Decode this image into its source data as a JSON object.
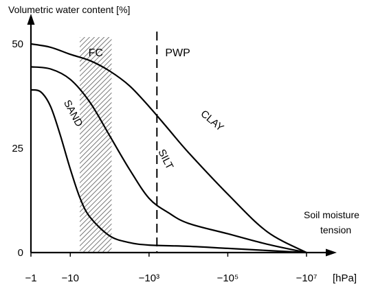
{
  "chart_data": {
    "type": "line",
    "title": "",
    "ylabel": "Volumetric water content [%]",
    "xlabel": "Soil moisture tension",
    "xunit": "[hPa]",
    "ylim": [
      0,
      50
    ],
    "x_ticks": [
      "−1",
      "−10",
      "−10³",
      "−10⁵",
      "−10⁷"
    ],
    "y_ticks": [
      "0",
      "25",
      "50"
    ],
    "series": [
      {
        "name": "SAND",
        "points": [
          [
            0,
            39
          ],
          [
            0.25,
            38.5
          ],
          [
            0.5,
            35
          ],
          [
            0.75,
            28
          ],
          [
            1.0,
            20
          ],
          [
            1.25,
            13
          ],
          [
            1.5,
            8.5
          ],
          [
            2.0,
            4
          ],
          [
            2.5,
            2.4
          ],
          [
            3.0,
            1.8
          ],
          [
            4.0,
            1.5
          ],
          [
            5.0,
            1.0
          ],
          [
            6.0,
            0.5
          ],
          [
            7.0,
            0
          ]
        ]
      },
      {
        "name": "SILT",
        "points": [
          [
            0,
            44.5
          ],
          [
            0.5,
            44
          ],
          [
            1.0,
            41.5
          ],
          [
            1.5,
            36
          ],
          [
            2.0,
            28
          ],
          [
            2.5,
            20
          ],
          [
            3.0,
            13
          ],
          [
            3.5,
            9.5
          ],
          [
            4.0,
            7
          ],
          [
            5.0,
            4.5
          ],
          [
            6.0,
            2
          ],
          [
            7.0,
            0
          ]
        ]
      },
      {
        "name": "CLAY",
        "points": [
          [
            0,
            50
          ],
          [
            0.5,
            49.2
          ],
          [
            1.0,
            47.5
          ],
          [
            1.5,
            46
          ],
          [
            2.0,
            43.5
          ],
          [
            2.5,
            40
          ],
          [
            3.0,
            35
          ],
          [
            3.5,
            29.5
          ],
          [
            4.0,
            24
          ],
          [
            5.0,
            14
          ],
          [
            6.0,
            5
          ],
          [
            7.0,
            0
          ]
        ]
      }
    ],
    "annotations": {
      "fc": {
        "label": "FC",
        "x_range": [
          1.24,
          2.05
        ]
      },
      "pwp": {
        "label": "PWP",
        "x": 3.2
      }
    },
    "grid": false,
    "legend": "none"
  }
}
